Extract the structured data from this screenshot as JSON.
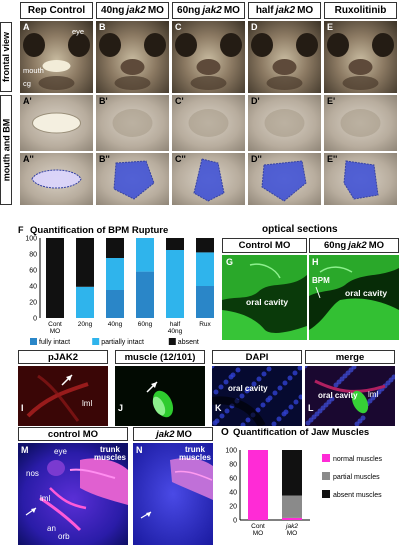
{
  "column_headers": [
    "Rep Control",
    "40ng jak2 MO",
    "60ng jak2 MO",
    "half jak2 MO",
    "Ruxolitinib"
  ],
  "column_header_parts": [
    {
      "pre": "Rep Control",
      "it": "",
      "post": ""
    },
    {
      "pre": "40ng",
      "it": "jak2",
      "post": "MO"
    },
    {
      "pre": "60ng",
      "it": "jak2",
      "post": "MO"
    },
    {
      "pre": "half",
      "it": "jak2",
      "post": "MO"
    },
    {
      "pre": "Ruxolitinib",
      "it": "",
      "post": ""
    }
  ],
  "row_labels": {
    "frontal": "frontal view",
    "mouth": "mouth and BM"
  },
  "panel_letters": {
    "row1": [
      "A",
      "B",
      "C",
      "D",
      "E"
    ],
    "row2": [
      "A'",
      "B'",
      "C'",
      "D'",
      "E'"
    ],
    "row3": [
      "A''",
      "B''",
      "C''",
      "D''",
      "E''"
    ]
  },
  "annotations_A": {
    "eye": "eye",
    "mouth": "mouth",
    "cg": "cg"
  },
  "panel_F": {
    "letter": "F",
    "title": "Quantification of BPM Rupture"
  },
  "chart_data": {
    "type": "bar",
    "stacked": true,
    "title": "Quantification of BPM Rupture",
    "categories": [
      "Cont MO",
      "20ng",
      "40ng",
      "60ng",
      "half 40ng",
      "Rux"
    ],
    "series": [
      {
        "name": "fully intact",
        "color": "#2a86c8",
        "values": [
          0,
          0,
          35,
          58,
          0,
          40
        ]
      },
      {
        "name": "partially intact",
        "color": "#2fb4ec",
        "values": [
          0,
          39,
          40,
          42,
          85,
          42
        ]
      },
      {
        "name": "absent",
        "color": "#111111",
        "values": [
          100,
          61,
          25,
          0,
          15,
          18
        ]
      }
    ],
    "yticks": [
      "0",
      "20",
      "40",
      "60",
      "80",
      "100"
    ],
    "ylim": [
      0,
      100
    ],
    "legend": "bottom"
  },
  "panel_opt": {
    "title": "optical sections",
    "g_header": "Control MO",
    "h_header_parts": {
      "pre": "60ng",
      "it": "jak2",
      "post": "MO"
    },
    "g_letter": "G",
    "h_letter": "H",
    "g_oral": "oral cavity",
    "h_oral": "oral cavity",
    "bpm": "BPM"
  },
  "row_IL": {
    "headers": [
      "pJAK2",
      "muscle (12/101)",
      "DAPI",
      "merge"
    ],
    "letters": [
      "I",
      "J",
      "K",
      "L"
    ],
    "lml_I": "lml",
    "oral_K": "oral cavity",
    "oral_L": "oral cavity",
    "lml_L": "lml"
  },
  "panel_M": {
    "letter": "M",
    "header": "control MO",
    "eye": "eye",
    "nos": "nos",
    "lml": "lml",
    "an": "an",
    "orb": "orb",
    "trunk": "trunk muscles"
  },
  "panel_N": {
    "letter": "N",
    "header_parts": {
      "pre": "",
      "it": "jak2",
      "post": "MO"
    },
    "trunk": "trunk muscles"
  },
  "panel_O": {
    "letter": "O",
    "title": "Quantification of Jaw Muscles"
  },
  "chart_data_O": {
    "type": "bar",
    "stacked": true,
    "title": "Quantification of Jaw Muscles",
    "categories": [
      "Cont MO",
      "jak2 MO"
    ],
    "series": [
      {
        "name": "normal muscles",
        "color": "#ff2bd6",
        "values": [
          100,
          3
        ]
      },
      {
        "name": "partial muscles",
        "color": "#8a8a8a",
        "values": [
          0,
          32
        ]
      },
      {
        "name": "absent muscles",
        "color": "#111111",
        "values": [
          0,
          65
        ]
      }
    ],
    "yticks": [
      "0",
      "20",
      "40",
      "60",
      "80",
      "100"
    ],
    "ylim": [
      0,
      100
    ],
    "legend": "right"
  }
}
